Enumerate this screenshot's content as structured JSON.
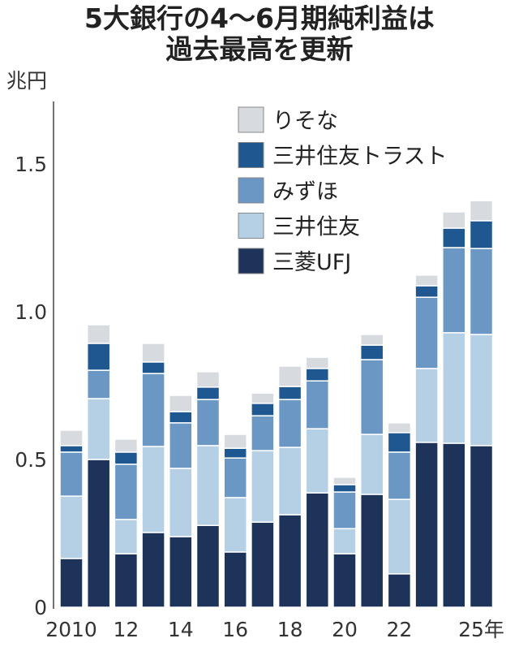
{
  "chart_data": {
    "type": "bar",
    "stacked": true,
    "title": "5大銀行の4～6月期純利益は過去最高を更新",
    "title_lines": [
      "5大銀行の4～6月期純利益は",
      "過去最高を更新"
    ],
    "ylabel": "兆円",
    "xlabel": "",
    "ylim": [
      0,
      1.7
    ],
    "yticks": [
      0,
      0.5,
      1.0,
      1.5
    ],
    "ytick_labels": [
      "0",
      "0.5",
      "1.0",
      "1.5"
    ],
    "categories": [
      "2010",
      "2011",
      "2012",
      "2013",
      "2014",
      "2015",
      "2016",
      "2017",
      "2018",
      "2019",
      "2020",
      "2021",
      "2022",
      "2023",
      "2024",
      "2025"
    ],
    "xtick_labels": [
      "2010",
      "",
      "12",
      "",
      "14",
      "",
      "16",
      "",
      "18",
      "",
      "20",
      "",
      "22",
      "",
      "",
      "25年"
    ],
    "legend_position": "top-right",
    "series": [
      {
        "name": "三菱UFJ",
        "color": "#1d335a",
        "values": [
          0.165,
          0.5,
          0.181,
          0.253,
          0.239,
          0.277,
          0.187,
          0.288,
          0.313,
          0.387,
          0.181,
          0.382,
          0.113,
          0.558,
          0.555,
          0.547
        ]
      },
      {
        "name": "三井住友",
        "color": "#b5cfe4",
        "values": [
          0.211,
          0.206,
          0.116,
          0.291,
          0.231,
          0.27,
          0.184,
          0.242,
          0.228,
          0.217,
          0.085,
          0.203,
          0.252,
          0.25,
          0.374,
          0.376
        ]
      },
      {
        "name": "みずほ",
        "color": "#6b97c5",
        "values": [
          0.149,
          0.096,
          0.187,
          0.247,
          0.154,
          0.156,
          0.134,
          0.118,
          0.162,
          0.162,
          0.124,
          0.253,
          0.16,
          0.241,
          0.288,
          0.291
        ]
      },
      {
        "name": "三井住友トラスト",
        "color": "#1f5790",
        "values": [
          0.022,
          0.091,
          0.041,
          0.039,
          0.038,
          0.042,
          0.033,
          0.042,
          0.044,
          0.042,
          0.025,
          0.049,
          0.066,
          0.039,
          0.066,
          0.094
        ]
      },
      {
        "name": "りそな",
        "color": "#d7dbe0",
        "values": [
          0.052,
          0.063,
          0.044,
          0.063,
          0.055,
          0.052,
          0.047,
          0.035,
          0.069,
          0.038,
          0.025,
          0.036,
          0.033,
          0.036,
          0.055,
          0.068
        ]
      }
    ]
  }
}
